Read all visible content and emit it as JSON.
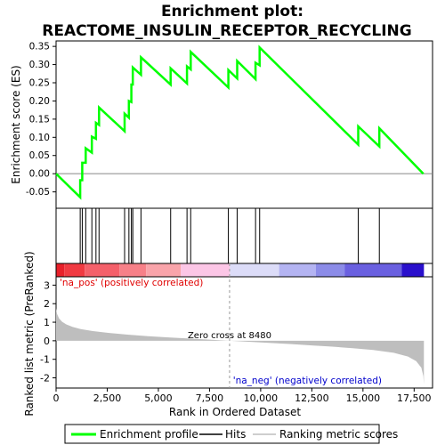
{
  "chart_data": {
    "type": "line",
    "title_line1": "Enrichment plot:",
    "title_line2": "REACTOME_INSULIN_RECEPTOR_RECYCLING",
    "top_panel": {
      "ylabel": "Enrichment score (ES)",
      "ylim": [
        -0.095,
        0.365
      ],
      "yticks": [
        -0.05,
        0.0,
        0.05,
        0.1,
        0.15,
        0.2,
        0.25,
        0.3,
        0.35
      ],
      "ytick_labels": [
        "-0.05",
        "0.00",
        "0.05",
        "0.10",
        "0.15",
        "0.20",
        "0.25",
        "0.30",
        "0.35"
      ],
      "series_name": "Enrichment profile",
      "series_color": "#00ff00",
      "es_points": [
        [
          0,
          0.0
        ],
        [
          1180,
          -0.065
        ],
        [
          1180,
          -0.018
        ],
        [
          1280,
          -0.018
        ],
        [
          1280,
          0.03
        ],
        [
          1450,
          0.03
        ],
        [
          1450,
          0.07
        ],
        [
          1750,
          0.058
        ],
        [
          1750,
          0.102
        ],
        [
          1950,
          0.096
        ],
        [
          1950,
          0.14
        ],
        [
          2100,
          0.134
        ],
        [
          2100,
          0.182
        ],
        [
          3350,
          0.117
        ],
        [
          3350,
          0.165
        ],
        [
          3560,
          0.154
        ],
        [
          3560,
          0.2
        ],
        [
          3680,
          0.197
        ],
        [
          3680,
          0.245
        ],
        [
          3750,
          0.245
        ],
        [
          3750,
          0.292
        ],
        [
          4150,
          0.272
        ],
        [
          4150,
          0.32
        ],
        [
          5600,
          0.245
        ],
        [
          5600,
          0.29
        ],
        [
          6400,
          0.248
        ],
        [
          6400,
          0.295
        ],
        [
          6580,
          0.287
        ],
        [
          6580,
          0.335
        ],
        [
          8420,
          0.237
        ],
        [
          8420,
          0.285
        ],
        [
          8850,
          0.262
        ],
        [
          8850,
          0.31
        ],
        [
          9750,
          0.26
        ],
        [
          9750,
          0.305
        ],
        [
          9950,
          0.298
        ],
        [
          9950,
          0.347
        ],
        [
          14770,
          0.08
        ],
        [
          14770,
          0.13
        ],
        [
          15800,
          0.075
        ],
        [
          15800,
          0.125
        ],
        [
          17950,
          0.0
        ]
      ]
    },
    "hits": [
      1180,
      1280,
      1450,
      1750,
      1950,
      2100,
      3350,
      3560,
      3680,
      3750,
      4150,
      5600,
      6400,
      6580,
      8420,
      8850,
      9750,
      9950,
      14770,
      15800
    ],
    "hits_legend": "Hits",
    "colorbar": {
      "segments": [
        {
          "from": 0,
          "to": 400,
          "color": "#e8202a"
        },
        {
          "from": 400,
          "to": 1400,
          "color": "#f03a42"
        },
        {
          "from": 1400,
          "to": 3100,
          "color": "#f4606a"
        },
        {
          "from": 3100,
          "to": 4400,
          "color": "#f78088"
        },
        {
          "from": 4400,
          "to": 6100,
          "color": "#f9a4aa"
        },
        {
          "from": 6100,
          "to": 8500,
          "color": "#fcc6e6"
        },
        {
          "from": 8500,
          "to": 10900,
          "color": "#dcdcf8"
        },
        {
          "from": 10900,
          "to": 12700,
          "color": "#b4b4f2"
        },
        {
          "from": 12700,
          "to": 14100,
          "color": "#8c8ce8"
        },
        {
          "from": 14100,
          "to": 16900,
          "color": "#6a60e0"
        },
        {
          "from": 16900,
          "to": 17980,
          "color": "#2a10cc"
        }
      ]
    },
    "bottom_panel": {
      "ylabel": "Ranked list metric (PreRanked)",
      "xlabel": "Rank in Ordered Dataset",
      "ylim": [
        -2.55,
        3.45
      ],
      "yticks": [
        -2,
        -1,
        0,
        1,
        2,
        3
      ],
      "ytick_labels": [
        "-2",
        "-1",
        "0",
        "1",
        "2",
        "3"
      ],
      "metric_series_name": "Ranking metric scores",
      "metric_color": "#bebebe",
      "metric_profile": [
        [
          0,
          1.75
        ],
        [
          50,
          1.45
        ],
        [
          150,
          1.2
        ],
        [
          300,
          1.02
        ],
        [
          500,
          0.88
        ],
        [
          800,
          0.75
        ],
        [
          1200,
          0.63
        ],
        [
          1800,
          0.52
        ],
        [
          2500,
          0.43
        ],
        [
          3500,
          0.33
        ],
        [
          4500,
          0.25
        ],
        [
          5500,
          0.18
        ],
        [
          6500,
          0.12
        ],
        [
          7500,
          0.06
        ],
        [
          8480,
          0.0
        ],
        [
          9500,
          -0.06
        ],
        [
          10500,
          -0.12
        ],
        [
          11500,
          -0.18
        ],
        [
          12500,
          -0.25
        ],
        [
          13500,
          -0.32
        ],
        [
          14500,
          -0.4
        ],
        [
          15500,
          -0.5
        ],
        [
          16500,
          -0.65
        ],
        [
          17200,
          -0.85
        ],
        [
          17600,
          -1.1
        ],
        [
          17850,
          -1.45
        ],
        [
          17950,
          -1.9
        ],
        [
          17980,
          -2.35
        ]
      ],
      "zero_cross_text": "Zero cross at 8480",
      "zero_cross_rank": 8480,
      "pos_label": "'na_pos' (positively correlated)",
      "neg_label": "'na_neg' (negatively correlated)"
    },
    "xlim": [
      0,
      18400
    ],
    "xticks": [
      0,
      2500,
      5000,
      7500,
      10000,
      12500,
      15000,
      17500
    ],
    "xtick_labels": [
      "0",
      "2,500",
      "5,000",
      "7,500",
      "10,000",
      "12,500",
      "15,000",
      "17,500"
    ],
    "legend_position": "bottom"
  }
}
